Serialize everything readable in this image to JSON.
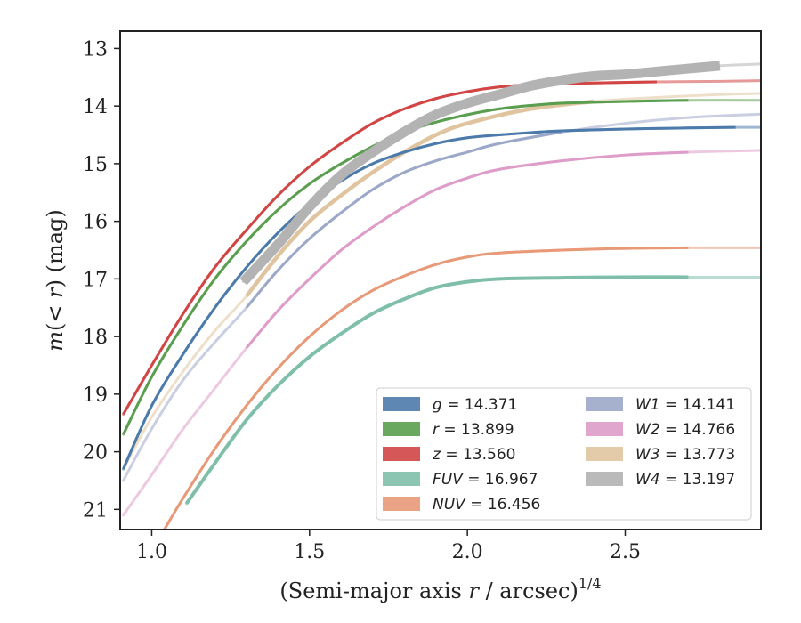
{
  "chart_data": {
    "type": "line",
    "title": "",
    "xlabel": "(Semi-major axis r / arcsec)",
    "xlabel_parts": [
      "(Semi-major axis ",
      "r",
      " / arcsec)",
      "1/4"
    ],
    "ylabel_parts": [
      "m",
      "(< ",
      "r",
      ") (mag)"
    ],
    "xlim": [
      0.9,
      2.93
    ],
    "ylim": [
      21.35,
      12.7
    ],
    "y_inverted": true,
    "xticks": [
      1.0,
      1.5,
      2.0,
      2.5
    ],
    "xtick_labels": [
      "1.0",
      "1.5",
      "2.0",
      "2.5"
    ],
    "yticks": [
      13,
      14,
      15,
      16,
      17,
      18,
      19,
      20,
      21
    ],
    "ytick_labels": [
      "13",
      "14",
      "15",
      "16",
      "17",
      "18",
      "19",
      "20",
      "21"
    ],
    "grid": false,
    "legend_placement": "lower-right",
    "legend_columns": 2,
    "series": [
      {
        "name": "g",
        "value": "14.371",
        "color": "#4c7bab",
        "x": [
          0.91,
          1.0,
          1.1,
          1.2,
          1.3,
          1.4,
          1.5,
          1.6,
          1.7,
          1.8,
          1.9,
          2.0,
          2.1,
          2.2,
          2.3,
          2.5,
          2.7,
          2.85,
          2.93
        ],
        "y": [
          20.3,
          19.2,
          18.3,
          17.5,
          16.8,
          16.2,
          15.7,
          15.3,
          15.0,
          14.8,
          14.65,
          14.55,
          14.5,
          14.46,
          14.43,
          14.4,
          14.38,
          14.37,
          14.37
        ],
        "solid_x": [
          0.9,
          2.85
        ]
      },
      {
        "name": "r",
        "value": "13.899",
        "color": "#5a9e4f",
        "x": [
          0.91,
          1.0,
          1.1,
          1.2,
          1.3,
          1.4,
          1.5,
          1.6,
          1.7,
          1.8,
          1.9,
          2.0,
          2.1,
          2.2,
          2.3,
          2.5,
          2.7,
          2.93
        ],
        "y": [
          19.7,
          18.7,
          17.8,
          17.0,
          16.35,
          15.8,
          15.35,
          15.0,
          14.7,
          14.45,
          14.28,
          14.15,
          14.05,
          13.99,
          13.95,
          13.92,
          13.9,
          13.9
        ],
        "solid_x": [
          0.9,
          2.8
        ]
      },
      {
        "name": "z",
        "value": "13.560",
        "color": "#d14545",
        "x": [
          0.91,
          1.0,
          1.1,
          1.2,
          1.3,
          1.4,
          1.5,
          1.6,
          1.7,
          1.8,
          1.9,
          2.0,
          2.1,
          2.2,
          2.4,
          2.6,
          2.8,
          2.93
        ],
        "y": [
          19.35,
          18.5,
          17.6,
          16.8,
          16.15,
          15.55,
          15.05,
          14.65,
          14.3,
          14.05,
          13.87,
          13.75,
          13.67,
          13.63,
          13.6,
          13.58,
          13.57,
          13.56
        ],
        "solid_x": [
          0.9,
          2.75
        ]
      },
      {
        "name": "FUV",
        "value": "16.967",
        "color": "#7fbfaa",
        "x": [
          1.11,
          1.2,
          1.3,
          1.4,
          1.5,
          1.6,
          1.7,
          1.8,
          1.9,
          2.0,
          2.1,
          2.3,
          2.5,
          2.7,
          2.93
        ],
        "y": [
          20.9,
          20.2,
          19.45,
          18.85,
          18.35,
          17.95,
          17.6,
          17.35,
          17.15,
          17.05,
          17.0,
          16.98,
          16.97,
          16.97,
          16.97
        ],
        "solid_x": [
          1.1,
          2.85
        ]
      },
      {
        "name": "NUV",
        "value": "16.456",
        "color": "#e89a78",
        "x": [
          1.04,
          1.1,
          1.2,
          1.3,
          1.4,
          1.5,
          1.6,
          1.7,
          1.8,
          1.9,
          2.0,
          2.1,
          2.3,
          2.5,
          2.7,
          2.93
        ],
        "y": [
          21.35,
          20.8,
          19.95,
          19.2,
          18.55,
          18.0,
          17.55,
          17.2,
          16.95,
          16.75,
          16.62,
          16.55,
          16.5,
          16.47,
          16.46,
          16.46
        ],
        "solid_x": [
          1.04,
          2.75
        ]
      },
      {
        "name": "W1",
        "value": "14.141",
        "color": "#9ca8c8",
        "x": [
          0.91,
          1.0,
          1.1,
          1.2,
          1.3,
          1.4,
          1.5,
          1.6,
          1.7,
          1.8,
          1.9,
          2.0,
          2.1,
          2.3,
          2.5,
          2.7,
          2.93
        ],
        "y": [
          20.5,
          19.6,
          18.75,
          18.1,
          17.5,
          16.85,
          16.3,
          15.85,
          15.45,
          15.15,
          14.95,
          14.8,
          14.65,
          14.45,
          14.3,
          14.2,
          14.14
        ],
        "solid_x": [
          1.29,
          2.4
        ]
      },
      {
        "name": "W2",
        "value": "14.766",
        "color": "#de9cc9",
        "x": [
          0.91,
          1.0,
          1.1,
          1.2,
          1.3,
          1.4,
          1.5,
          1.6,
          1.7,
          1.8,
          1.9,
          2.0,
          2.1,
          2.3,
          2.5,
          2.7,
          2.93
        ],
        "y": [
          21.1,
          20.4,
          19.6,
          18.9,
          18.2,
          17.55,
          17.0,
          16.5,
          16.1,
          15.75,
          15.45,
          15.25,
          15.1,
          14.95,
          14.85,
          14.8,
          14.77
        ],
        "solid_x": [
          1.29,
          2.75
        ]
      },
      {
        "name": "W3",
        "value": "13.773",
        "color": "#e0c49f",
        "x": [
          0.91,
          1.0,
          1.1,
          1.2,
          1.3,
          1.4,
          1.5,
          1.6,
          1.7,
          1.8,
          1.9,
          2.0,
          2.2,
          2.4,
          2.6,
          2.8,
          2.93
        ],
        "y": [
          20.3,
          19.4,
          18.6,
          17.9,
          17.3,
          16.6,
          16.0,
          15.55,
          15.15,
          14.8,
          14.5,
          14.3,
          14.05,
          13.92,
          13.85,
          13.8,
          13.78
        ],
        "solid_x": [
          1.29,
          2.5
        ]
      },
      {
        "name": "W4",
        "value": "13.197",
        "color": "#b3b3b3",
        "x": [
          1.29,
          1.4,
          1.5,
          1.6,
          1.7,
          1.8,
          1.9,
          2.0,
          2.1,
          2.2,
          2.3,
          2.4,
          2.5,
          2.6,
          2.7,
          2.8,
          2.93
        ],
        "y": [
          17.05,
          16.4,
          15.75,
          15.2,
          14.8,
          14.45,
          14.15,
          13.95,
          13.8,
          13.65,
          13.55,
          13.48,
          13.45,
          13.4,
          13.35,
          13.3,
          13.27
        ],
        "solid_x": [
          1.29,
          2.88
        ]
      }
    ]
  }
}
